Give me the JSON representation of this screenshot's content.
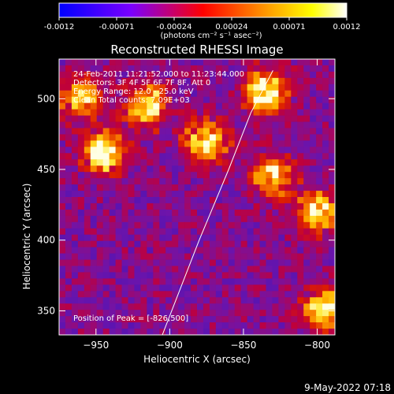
{
  "colorbar": {
    "tick_labels": [
      "-0.0012",
      "-0.00071",
      "-0.00024",
      "0.00024",
      "0.00071",
      "0.0012"
    ],
    "min": -0.0012,
    "max": 0.0012,
    "unit_label": "(photons cm⁻² s⁻¹ asec⁻²)",
    "colors": [
      "#0000ff",
      "#7a00ff",
      "#ff0000",
      "#ff9900",
      "#ffff00",
      "#ffffff"
    ]
  },
  "chart_data": {
    "type": "heatmap",
    "title": "Reconstructed RHESSI Image",
    "xlabel": "Heliocentric X (arcsec)",
    "ylabel": "Heliocentric Y (arcsec)",
    "xlim": [
      -975,
      -788
    ],
    "ylim": [
      333,
      528
    ],
    "x_ticks": [
      -950,
      -900,
      -850,
      -800
    ],
    "y_ticks": [
      350,
      400,
      450,
      500
    ],
    "x_tick_labels": [
      "−950",
      "−900",
      "−850",
      "−800"
    ],
    "y_tick_labels": [
      "350",
      "400",
      "450",
      "500"
    ],
    "annotations": [
      "24-Feb-2011 11:21:52.000 to 11:23:44.000",
      "Detectors: 3F 4F 5F 6F 7F 8F, Att 0",
      "Energy Range: 12.0 - 25.0 keV",
      "Clean     Total counts: 7.09E+03"
    ],
    "peak_label": "Position of Peak = [-826,500]",
    "peak": [
      -826,
      500
    ],
    "limb_curve": [
      [
        -905,
        333
      ],
      [
        -880,
        400
      ],
      [
        -860,
        450
      ],
      [
        -845,
        490
      ],
      [
        -830,
        520
      ]
    ],
    "bright_sources": [
      {
        "x": -945,
        "y": 462,
        "level": 0.9
      },
      {
        "x": -915,
        "y": 495,
        "level": 0.8
      },
      {
        "x": -875,
        "y": 470,
        "level": 0.85
      },
      {
        "x": -835,
        "y": 505,
        "level": 0.95
      },
      {
        "x": -830,
        "y": 445,
        "level": 0.7
      },
      {
        "x": -800,
        "y": 420,
        "level": 0.75
      },
      {
        "x": -795,
        "y": 350,
        "level": 0.85
      },
      {
        "x": -960,
        "y": 500,
        "level": 0.6
      }
    ]
  },
  "footer": {
    "timestamp": "9-May-2022 07:18"
  }
}
